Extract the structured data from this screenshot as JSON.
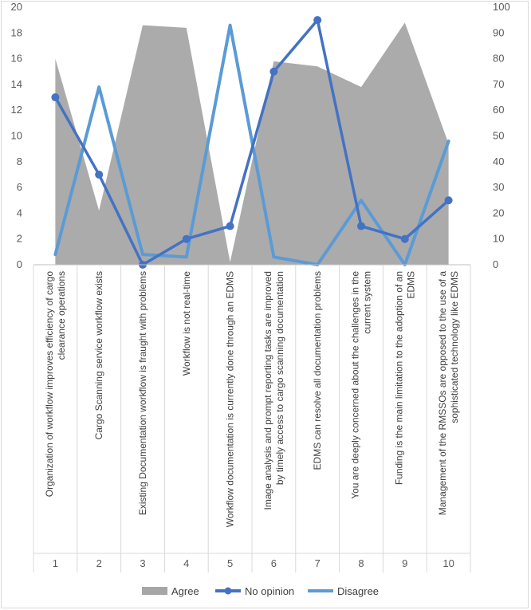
{
  "chart_data": {
    "type": "area",
    "title": "",
    "xlabel": "",
    "ylabel": "",
    "categories": [
      "Organization of workflow improves efficiency of cargo clearance operations",
      "Cargo Scanning service workflow exists",
      "Existing Documentation workflow is fraught with problems",
      "Workflow is not real-time",
      "Workflow documentation is currently done through an EDMS",
      "Image analysis and prompt reporting tasks are improved by timely access to cargo scanning documentation",
      "EDMS can resolve all documentation problems",
      "You are deeply concerned about the challenges in the current system",
      "Funding is the main limitation to the adoption of an EDMS",
      "Management of the RMSSOs are opposed to the use of a sophisticated technology like EDMS"
    ],
    "category_numbers": [
      "1",
      "2",
      "3",
      "4",
      "5",
      "6",
      "7",
      "8",
      "9",
      "10"
    ],
    "left_axis": {
      "ylim": [
        0,
        20
      ],
      "ticks": [
        "0",
        "2",
        "4",
        "6",
        "8",
        "10",
        "12",
        "14",
        "16",
        "18",
        "20"
      ]
    },
    "right_axis": {
      "ylim": [
        0,
        100
      ],
      "ticks": [
        "0",
        "10",
        "20",
        "30",
        "40",
        "50",
        "60",
        "70",
        "80",
        "90",
        "100"
      ]
    },
    "series": [
      {
        "name": "Agree",
        "type": "area",
        "axis": "right",
        "color": "#a6a6a6",
        "values": [
          80,
          21,
          93,
          92,
          1,
          79,
          77,
          69,
          94,
          47
        ]
      },
      {
        "name": "No opinion",
        "type": "line",
        "axis": "left",
        "color": "#4472c4",
        "values": [
          13,
          7,
          0,
          2,
          3,
          15,
          19,
          3,
          2,
          5
        ]
      },
      {
        "name": "Disagree",
        "type": "line",
        "axis": "right",
        "color": "#5b9bd5",
        "values": [
          4,
          69,
          4,
          3,
          93,
          3,
          0,
          25,
          0,
          48
        ]
      }
    ],
    "legend": {
      "placement": "bottom",
      "entries": [
        "Agree",
        "No opinion",
        "Disagree"
      ]
    }
  }
}
